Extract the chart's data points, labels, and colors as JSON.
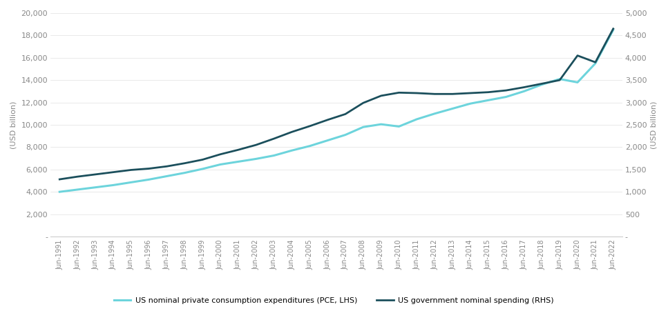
{
  "title": "",
  "xlabel": "",
  "ylabel_left": "(USD billion)",
  "ylabel_right": "(USD billion)",
  "legend_pce": "US nominal private consumption expenditures (PCE, LHS)",
  "legend_gov": "US government nominal spending (RHS)",
  "color_pce": "#6dd4dc",
  "color_gov": "#1b4f5c",
  "background_color": "#ffffff",
  "xlabels": [
    "Jun-1991",
    "Jun-1992",
    "Jun-1993",
    "Jun-1994",
    "Jun-1995",
    "Jun-1996",
    "Jun-1997",
    "Jun-1998",
    "Jun-1999",
    "Jun-2000",
    "Jun-2001",
    "Jun-2002",
    "Jun-2003",
    "Jun-2004",
    "Jun-2005",
    "Jun-2006",
    "Jun-2007",
    "Jun-2008",
    "Jun-2009",
    "Jun-2010",
    "Jun-2011",
    "Jun-2012",
    "Jun-2013",
    "Jun-2014",
    "Jun-2015",
    "Jun-2016",
    "Jun-2017",
    "Jun-2018",
    "Jun-2019",
    "Jun-2020",
    "Jun-2021",
    "Jun-2022"
  ],
  "pce_values": [
    4000,
    4200,
    4400,
    4600,
    4850,
    5100,
    5400,
    5700,
    6050,
    6450,
    6700,
    6950,
    7250,
    7700,
    8100,
    8600,
    9100,
    9800,
    10050,
    9850,
    10500,
    11000,
    11450,
    11900,
    12200,
    12500,
    13000,
    13600,
    14100,
    13800,
    15500,
    18500
  ],
  "gov_values": [
    1280,
    1340,
    1390,
    1440,
    1490,
    1520,
    1570,
    1640,
    1720,
    1840,
    1940,
    2050,
    2190,
    2340,
    2470,
    2610,
    2740,
    2990,
    3150,
    3220,
    3210,
    3190,
    3190,
    3210,
    3230,
    3270,
    3340,
    3420,
    3500,
    4050,
    3900,
    4650
  ],
  "ylim_left": [
    0,
    20000
  ],
  "ylim_right": [
    0,
    5000
  ],
  "yticks_left": [
    0,
    2000,
    4000,
    6000,
    8000,
    10000,
    12000,
    14000,
    16000,
    18000,
    20000
  ],
  "yticks_right": [
    0,
    500,
    1000,
    1500,
    2000,
    2500,
    3000,
    3500,
    4000,
    4500,
    5000
  ],
  "ytick_labels_left": [
    "-",
    "2,000",
    "4,000",
    "6,000",
    "8,000",
    "10,000",
    "12,000",
    "14,000",
    "16,000",
    "18,000",
    "20,000"
  ],
  "ytick_labels_right": [
    "-",
    "500",
    "1,000",
    "1,500",
    "2,000",
    "2,500",
    "3,000",
    "3,500",
    "4,000",
    "4,500",
    "5,000"
  ]
}
